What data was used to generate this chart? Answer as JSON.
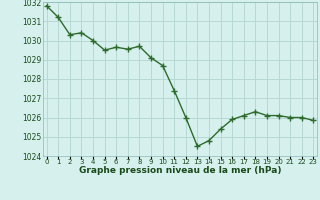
{
  "x": [
    0,
    1,
    2,
    3,
    4,
    5,
    6,
    7,
    8,
    9,
    10,
    11,
    12,
    13,
    14,
    15,
    16,
    17,
    18,
    19,
    20,
    21,
    22,
    23
  ],
  "y": [
    1031.8,
    1031.2,
    1030.3,
    1030.4,
    1030.0,
    1029.5,
    1029.65,
    1029.55,
    1029.7,
    1029.1,
    1028.7,
    1027.4,
    1026.0,
    1024.5,
    1024.8,
    1025.4,
    1025.9,
    1026.1,
    1026.3,
    1026.1,
    1026.1,
    1026.0,
    1026.0,
    1025.85
  ],
  "line_color": "#2d6b2d",
  "marker_color": "#2d6b2d",
  "bg_color": "#d6f0ee",
  "grid_color": "#b8d8d4",
  "xlabel": "Graphe pression niveau de la mer (hPa)",
  "xlabel_color": "#1a4a1a",
  "tick_color": "#1a4a1a",
  "ylim": [
    1024,
    1032
  ],
  "yticks": [
    1024,
    1025,
    1026,
    1027,
    1028,
    1029,
    1030,
    1031,
    1032
  ],
  "xticks": [
    0,
    1,
    2,
    3,
    4,
    5,
    6,
    7,
    8,
    9,
    10,
    11,
    12,
    13,
    14,
    15,
    16,
    17,
    18,
    19,
    20,
    21,
    22,
    23
  ],
  "xtick_labels": [
    "0",
    "1",
    "2",
    "3",
    "4",
    "5",
    "6",
    "7",
    "8",
    "9",
    "10",
    "11",
    "12",
    "13",
    "14",
    "15",
    "16",
    "17",
    "18",
    "19",
    "20",
    "21",
    "22",
    "23"
  ]
}
